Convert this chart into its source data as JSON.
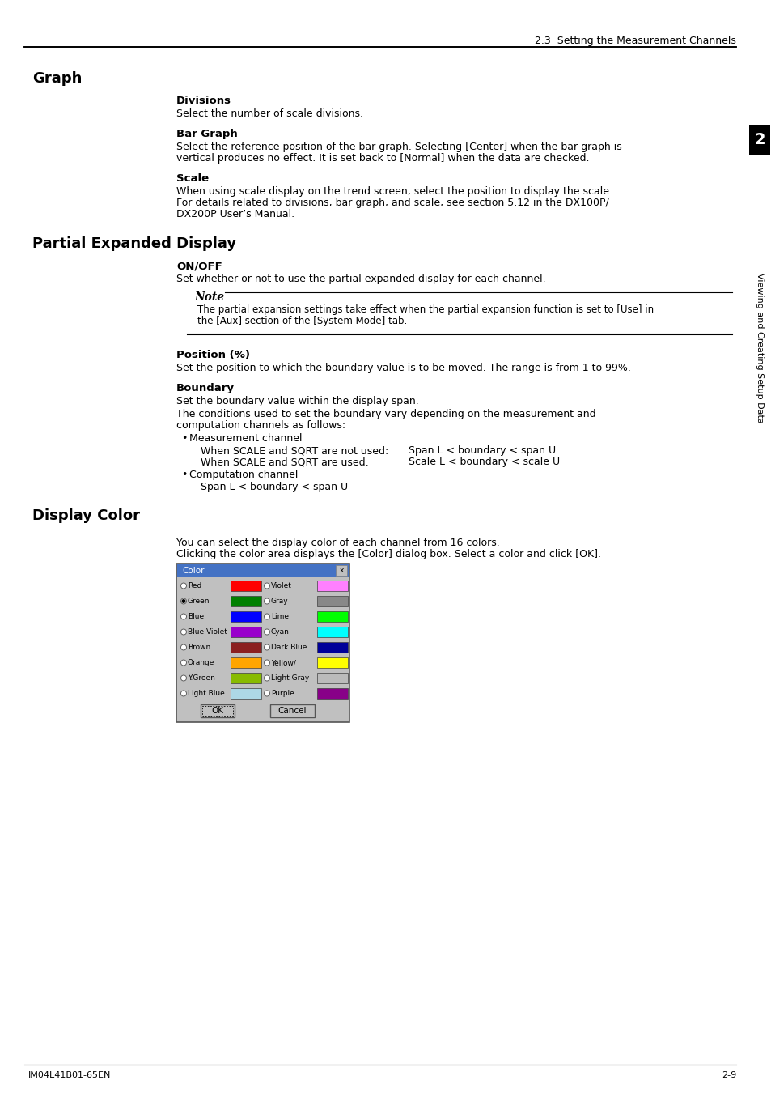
{
  "header_text": "2.3  Setting the Measurement Channels",
  "section1_title": "Graph",
  "div_heading": "Divisions",
  "div_body": "Select the number of scale divisions.",
  "bargraph_heading": "Bar Graph",
  "bargraph_line1": "Select the reference position of the bar graph. Selecting [Center] when the bar graph is",
  "bargraph_line2": "vertical produces no effect. It is set back to [Normal] when the data are checked.",
  "scale_heading": "Scale",
  "scale_line1": "When using scale display on the trend screen, select the position to display the scale.",
  "scale_line2": "For details related to divisions, bar graph, and scale, see section 5.12 in the DX100P/",
  "scale_line3": "DX200P User’s Manual.",
  "section2_title": "Partial Expanded Display",
  "onoff_heading": "ON/OFF",
  "onoff_body": "Set whether or not to use the partial expanded display for each channel.",
  "note_title": "Note",
  "note_line1": "The partial expansion settings take effect when the partial expansion function is set to [Use] in",
  "note_line2": "the [Aux] section of the [System Mode] tab.",
  "position_heading": "Position (%)",
  "position_body": "Set the position to which the boundary value is to be moved. The range is from 1 to 99%.",
  "boundary_heading": "Boundary",
  "boundary_body1": "Set the boundary value within the display span.",
  "boundary_body2a": "The conditions used to set the boundary vary depending on the measurement and",
  "boundary_body2b": "computation channels as follows:",
  "bullet1_title": "Measurement channel",
  "bullet1_line1a": "When SCALE and SQRT are not used:",
  "bullet1_line1b": "Span L < boundary < span U",
  "bullet1_line2a": "When SCALE and SQRT are used:",
  "bullet1_line2b": "Scale L < boundary < scale U",
  "bullet2_title": "Computation channel",
  "bullet2_line1": "Span L < boundary < span U",
  "section3_title": "Display Color",
  "display_color_body1": "You can select the display color of each channel from 16 colors.",
  "display_color_body2": "Clicking the color area displays the [Color] dialog box. Select a color and click [OK].",
  "dialog_title": "Color",
  "color_labels_left": [
    "Red",
    "Green",
    "Blue",
    "Blue Violet",
    "Brown",
    "Orange",
    "Y.Green",
    "Light Blue"
  ],
  "color_values_left": [
    "#FF0000",
    "#008000",
    "#0000FF",
    "#9900CC",
    "#8B2020",
    "#FFA500",
    "#88BB00",
    "#ADD8E6"
  ],
  "color_labels_right": [
    "Violet",
    "Gray",
    "Lime",
    "Cyan",
    "Dark Blue",
    "Yellow/",
    "Light Gray",
    "Purple"
  ],
  "color_values_right": [
    "#FF80FF",
    "#888888",
    "#00FF00",
    "#00FFFF",
    "#000099",
    "#FFFF00",
    "#BBBBBB",
    "#880088"
  ],
  "footer_left": "IM04L41B01-65EN",
  "footer_right": "2-9",
  "sidebar_text": "Viewing and Creating Setup Data",
  "sidebar_number": "2",
  "bg_color": "#FFFFFF",
  "text_color": "#000000",
  "dialog_bg": "#C0C0C0",
  "dialog_title_bg": "#4472C4"
}
